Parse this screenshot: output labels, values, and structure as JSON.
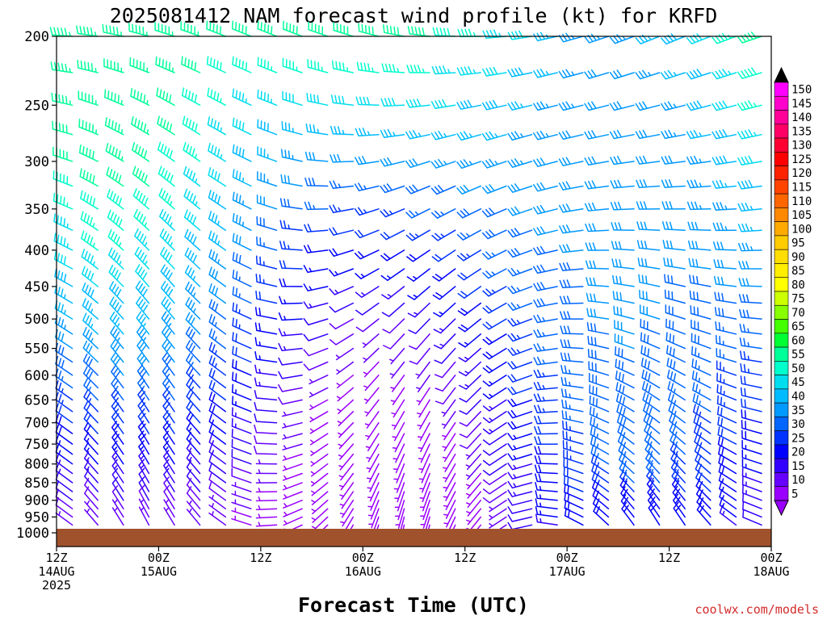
{
  "chart_data": {
    "type": "wind-barb",
    "title": "2025081412 NAM forecast wind profile (kt) for KRFD",
    "xlabel": "Forecast Time (UTC)",
    "credit": "coolwx.com/models",
    "y_ticks": [
      "200",
      "250",
      "300",
      "350",
      "400",
      "450",
      "500",
      "550",
      "600",
      "650",
      "700",
      "750",
      "800",
      "850",
      "900",
      "950",
      "1000"
    ],
    "y_tick_values": [
      200,
      250,
      300,
      350,
      400,
      450,
      500,
      550,
      600,
      650,
      700,
      750,
      800,
      850,
      900,
      950,
      1000
    ],
    "ylim": [
      1000,
      200
    ],
    "x_ticks": [
      {
        "hour": 0,
        "lines": [
          "12Z",
          "14AUG",
          "2025"
        ]
      },
      {
        "hour": 12,
        "lines": [
          "00Z",
          "15AUG"
        ]
      },
      {
        "hour": 24,
        "lines": [
          "12Z"
        ]
      },
      {
        "hour": 36,
        "lines": [
          "00Z",
          "16AUG"
        ]
      },
      {
        "hour": 48,
        "lines": [
          "12Z"
        ]
      },
      {
        "hour": 60,
        "lines": [
          "00Z",
          "17AUG"
        ]
      },
      {
        "hour": 72,
        "lines": [
          "12Z"
        ]
      },
      {
        "hour": 84,
        "lines": [
          "00Z",
          "18AUG"
        ]
      }
    ],
    "xlim": [
      0,
      84
    ],
    "colorbar": {
      "labels": [
        "150",
        "145",
        "140",
        "135",
        "130",
        "125",
        "120",
        "115",
        "110",
        "105",
        "100",
        "95",
        "90",
        "85",
        "80",
        "75",
        "70",
        "65",
        "60",
        "55",
        "50",
        "45",
        "40",
        "35",
        "30",
        "25",
        "20",
        "15",
        "10",
        "5"
      ],
      "colors": [
        "#ff00ff",
        "#ff00cc",
        "#ff0099",
        "#ff0066",
        "#ff0033",
        "#ff0000",
        "#ff2200",
        "#ff4400",
        "#ff6600",
        "#ff8800",
        "#ffaa00",
        "#ffcc00",
        "#ffdd00",
        "#ffee00",
        "#ffff00",
        "#ccff00",
        "#88ff00",
        "#44ff00",
        "#00ff33",
        "#00ff99",
        "#00ffcc",
        "#00ddee",
        "#00bbff",
        "#0099ff",
        "#0066ff",
        "#0033ff",
        "#0000ff",
        "#3300ff",
        "#6600ff",
        "#9900ff"
      ],
      "top_arrow_color": "#000000",
      "bottom_arrow_color": "#9900ff"
    },
    "ground_color": "#a0522d",
    "barb_spacing_hours": 3
  }
}
